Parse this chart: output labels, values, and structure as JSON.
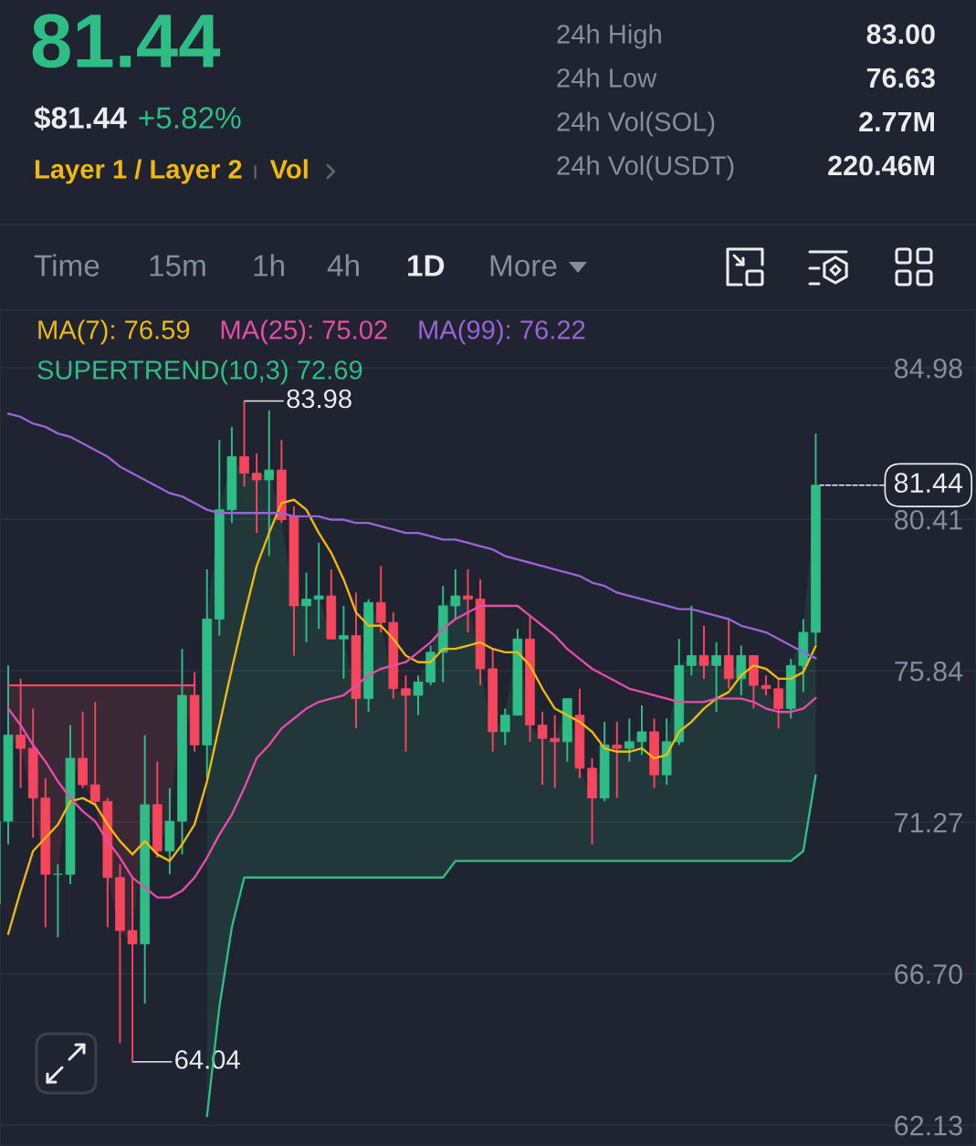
{
  "chart_data": [
    {
      "type": "other",
      "title": "81.44",
      "annotations": [
        "$81.44",
        "+5.82%",
        "Layer 1 / Layer 2",
        "Vol",
        "24h High",
        "83.00",
        "24h Low",
        "76.63",
        "24h Vol(SOL)",
        "2.77M",
        "24h Vol(USDT)",
        "220.46M",
        "Time",
        "15m",
        "1h",
        "4h",
        "1D",
        "More"
      ]
    },
    {
      "type": "candlestick",
      "categories": [
        null,
        null,
        null,
        null,
        null,
        null,
        null,
        null,
        null,
        null,
        null,
        null,
        null,
        null,
        null,
        null,
        null,
        null,
        null,
        null,
        null,
        null,
        null,
        null,
        null,
        null,
        null,
        null,
        null,
        null,
        null,
        null,
        null,
        null,
        null,
        null,
        null,
        null,
        null,
        null,
        null,
        null,
        null,
        null,
        null,
        null,
        null,
        null,
        null,
        null,
        null,
        null,
        null,
        null,
        null,
        null,
        null,
        null,
        null,
        null,
        null,
        null,
        null,
        null,
        null,
        null,
        null
      ],
      "ohlc": [
        [
          68.8,
          71.3,
          68.8,
          71.3
        ],
        [
          71.3,
          76.0,
          70.6,
          73.9
        ],
        [
          73.9,
          75.6,
          72.3,
          73.5
        ],
        [
          73.5,
          74.7,
          70.8,
          72.0
        ],
        [
          72.0,
          72.6,
          68.1,
          69.7
        ],
        [
          69.7,
          70.0,
          67.8,
          69.7
        ],
        [
          69.7,
          74.2,
          69.4,
          73.2
        ],
        [
          73.2,
          74.6,
          72.3,
          72.4
        ],
        [
          72.4,
          74.9,
          71.8,
          71.9
        ],
        [
          71.9,
          72.0,
          68.1,
          69.6
        ],
        [
          69.6,
          70.0,
          64.6,
          68.0
        ],
        [
          68.0,
          69.6,
          64.04,
          67.6
        ],
        [
          67.6,
          73.9,
          65.8,
          71.8
        ],
        [
          71.8,
          73.1,
          70.2,
          70.4
        ],
        [
          70.4,
          72.3,
          69.7,
          71.3
        ],
        [
          71.3,
          76.5,
          70.3,
          75.1
        ],
        [
          75.1,
          75.8,
          73.4,
          73.6
        ],
        [
          73.6,
          78.9,
          72.6,
          77.4
        ],
        [
          77.4,
          82.8,
          76.9,
          80.7
        ],
        [
          80.7,
          83.2,
          80.3,
          82.3
        ],
        [
          82.3,
          83.98,
          81.4,
          81.8
        ],
        [
          81.8,
          82.4,
          80.0,
          81.6
        ],
        [
          81.6,
          83.7,
          79.3,
          81.9
        ],
        [
          81.9,
          82.8,
          80.3,
          80.4
        ],
        [
          80.5,
          80.8,
          76.3,
          77.8
        ],
        [
          77.8,
          78.8,
          76.7,
          78.0
        ],
        [
          78.0,
          79.7,
          77.1,
          78.1
        ],
        [
          78.1,
          78.9,
          76.8,
          76.8
        ],
        [
          76.8,
          77.8,
          75.6,
          76.9
        ],
        [
          76.9,
          78.2,
          74.1,
          75.0
        ],
        [
          75.0,
          78.0,
          74.6,
          77.9
        ],
        [
          77.9,
          79.0,
          77.0,
          77.3
        ],
        [
          77.3,
          77.6,
          75.0,
          75.3
        ],
        [
          75.3,
          75.7,
          73.4,
          75.1
        ],
        [
          75.1,
          75.7,
          74.5,
          75.5
        ],
        [
          75.5,
          76.6,
          75.4,
          76.4
        ],
        [
          76.4,
          78.4,
          75.5,
          77.8
        ],
        [
          77.8,
          78.9,
          77.4,
          78.1
        ],
        [
          78.1,
          78.9,
          77.0,
          78.0
        ],
        [
          78.0,
          78.6,
          75.4,
          75.9
        ],
        [
          75.9,
          76.5,
          73.4,
          74.0
        ],
        [
          74.0,
          74.7,
          73.6,
          74.5
        ],
        [
          74.5,
          77.1,
          74.5,
          76.8
        ],
        [
          76.8,
          77.5,
          73.7,
          74.2
        ],
        [
          74.2,
          74.6,
          72.4,
          73.8
        ],
        [
          73.8,
          74.5,
          72.3,
          73.7
        ],
        [
          73.7,
          75.0,
          73.1,
          75.0
        ],
        [
          74.5,
          75.3,
          72.6,
          72.9
        ],
        [
          72.9,
          73.2,
          70.6,
          72.0
        ],
        [
          72.0,
          74.3,
          71.9,
          73.6
        ],
        [
          73.6,
          74.3,
          72.0,
          73.5
        ],
        [
          73.5,
          74.4,
          73.1,
          73.7
        ],
        [
          73.7,
          74.8,
          73.3,
          74.0
        ],
        [
          74.0,
          74.4,
          72.3,
          72.7
        ],
        [
          72.7,
          74.4,
          72.4,
          73.7
        ],
        [
          73.7,
          76.8,
          73.6,
          76.0
        ],
        [
          76.0,
          77.8,
          75.7,
          76.3
        ],
        [
          76.3,
          77.2,
          75.6,
          76.0
        ],
        [
          76.0,
          76.7,
          74.6,
          76.3
        ],
        [
          76.3,
          77.4,
          75.3,
          75.6
        ],
        [
          75.6,
          76.6,
          75.1,
          76.3
        ],
        [
          76.3,
          76.3,
          74.7,
          75.4
        ],
        [
          75.4,
          75.7,
          75.1,
          75.3
        ],
        [
          75.3,
          75.6,
          74.1,
          74.7
        ],
        [
          74.7,
          76.2,
          74.4,
          76.0
        ],
        [
          76.0,
          77.4,
          75.2,
          77.0
        ],
        [
          77.0,
          83.0,
          76.63,
          81.44
        ]
      ],
      "colors": [
        "#2ebd85",
        "#2ebd85",
        "#f6465d",
        "#f6465d",
        "#f6465d",
        "#2ebd85",
        "#2ebd85",
        "#f6465d",
        "#f6465d",
        "#f6465d",
        "#f6465d",
        "#f6465d",
        "#2ebd85",
        "#f6465d",
        "#2ebd85",
        "#2ebd85",
        "#f6465d",
        "#2ebd85",
        "#2ebd85",
        "#2ebd85",
        "#f6465d",
        "#f6465d",
        "#2ebd85",
        "#f6465d",
        "#f6465d",
        "#2ebd85",
        "#2ebd85",
        "#f6465d",
        "#2ebd85",
        "#f6465d",
        "#2ebd85",
        "#f6465d",
        "#f6465d",
        "#f6465d",
        "#2ebd85",
        "#2ebd85",
        "#2ebd85",
        "#2ebd85",
        "#f6465d",
        "#f6465d",
        "#f6465d",
        "#2ebd85",
        "#2ebd85",
        "#f6465d",
        "#f6465d",
        "#f6465d",
        "#2ebd85",
        "#f6465d",
        "#f6465d",
        "#2ebd85",
        "#f6465d",
        "#2ebd85",
        "#2ebd85",
        "#f6465d",
        "#2ebd85",
        "#2ebd85",
        "#2ebd85",
        "#f6465d",
        "#2ebd85",
        "#f6465d",
        "#2ebd85",
        "#f6465d",
        "#f6465d",
        "#f6465d",
        "#2ebd85",
        "#2ebd85",
        "#2ebd85"
      ],
      "series": [
        {
          "type": "line",
          "name": "MA(7): 76.59",
          "color": "#f0b90b",
          "values": [
            null,
            67.9,
            69.2,
            70.4,
            70.8,
            71.2,
            71.9,
            72.0,
            71.8,
            71.2,
            70.7,
            70.3,
            70.7,
            70.3,
            70.1,
            70.6,
            71.2,
            72.5,
            74.2,
            75.9,
            77.5,
            79.0,
            80.0,
            80.9,
            81.0,
            80.7,
            80.0,
            79.4,
            78.6,
            77.6,
            77.2,
            77.2,
            76.8,
            76.3,
            76.1,
            76.1,
            76.5,
            76.5,
            76.6,
            76.7,
            76.5,
            76.4,
            76.4,
            76.0,
            75.3,
            74.7,
            74.5,
            74.3,
            74.0,
            73.5,
            73.4,
            73.4,
            73.5,
            73.2,
            73.3,
            74.0,
            74.3,
            74.7,
            75.0,
            75.2,
            75.7,
            76.0,
            75.9,
            75.6,
            75.6,
            75.8,
            76.59
          ]
        },
        {
          "type": "line",
          "name": "MA(25): 75.02",
          "color": "#e84ca8",
          "values": [
            null,
            74.7,
            74.2,
            73.6,
            73.1,
            72.5,
            72.0,
            71.6,
            71.3,
            70.7,
            70.2,
            69.6,
            69.3,
            69.0,
            69.0,
            69.2,
            69.6,
            70.2,
            70.9,
            71.5,
            72.3,
            73.2,
            73.6,
            74.1,
            74.4,
            74.7,
            74.9,
            75.0,
            75.1,
            75.4,
            75.7,
            75.9,
            76.0,
            76.1,
            76.4,
            76.7,
            77.1,
            77.4,
            77.6,
            77.8,
            77.8,
            77.8,
            77.8,
            77.5,
            77.2,
            76.9,
            76.5,
            76.2,
            75.9,
            75.7,
            75.5,
            75.3,
            75.2,
            75.1,
            75.0,
            74.9,
            74.9,
            74.9,
            75.0,
            75.0,
            75.0,
            74.9,
            74.7,
            74.6,
            74.6,
            74.7,
            75.02
          ]
        },
        {
          "type": "line",
          "name": "MA(99): 76.22",
          "color": "#9a63d8",
          "values": [
            null,
            83.6,
            83.5,
            83.3,
            83.2,
            83.0,
            82.9,
            82.7,
            82.5,
            82.3,
            82.0,
            81.8,
            81.6,
            81.4,
            81.2,
            81.1,
            80.9,
            80.7,
            80.6,
            80.6,
            80.6,
            80.6,
            80.6,
            80.6,
            80.5,
            80.5,
            80.5,
            80.4,
            80.4,
            80.3,
            80.3,
            80.2,
            80.1,
            80.0,
            80.0,
            79.9,
            79.8,
            79.8,
            79.7,
            79.6,
            79.5,
            79.3,
            79.2,
            79.1,
            79.0,
            78.9,
            78.8,
            78.7,
            78.5,
            78.4,
            78.2,
            78.1,
            78.0,
            77.9,
            77.8,
            77.7,
            77.7,
            77.6,
            77.5,
            77.4,
            77.2,
            77.1,
            77.0,
            76.8,
            76.6,
            76.4,
            76.22
          ]
        },
        {
          "type": "line",
          "name": "SUPERTREND(10,3) 72.69",
          "color": "#2ebd85",
          "values": [
            null,
            null,
            null,
            null,
            null,
            null,
            null,
            null,
            null,
            null,
            null,
            null,
            null,
            null,
            null,
            null,
            null,
            62.4,
            65.7,
            68.1,
            69.6,
            69.6,
            69.6,
            69.6,
            69.6,
            69.6,
            69.6,
            69.6,
            69.6,
            69.6,
            69.6,
            69.6,
            69.6,
            69.6,
            69.6,
            69.6,
            69.6,
            70.1,
            70.1,
            70.1,
            70.1,
            70.1,
            70.1,
            70.1,
            70.1,
            70.1,
            70.1,
            70.1,
            70.1,
            70.1,
            70.1,
            70.1,
            70.1,
            70.1,
            70.1,
            70.1,
            70.1,
            70.1,
            70.1,
            70.1,
            70.1,
            70.1,
            70.1,
            70.1,
            70.1,
            70.4,
            72.69
          ],
          "lower": [
            null,
            null,
            null,
            null,
            null,
            null,
            null,
            null,
            null,
            null,
            null,
            null,
            null,
            null,
            null,
            null,
            null,
            62.4,
            65.7,
            68.1,
            69.6,
            69.6,
            69.6,
            69.6,
            69.6,
            69.6,
            69.6,
            69.6,
            69.6,
            69.6,
            69.6,
            69.6,
            69.6,
            69.6,
            69.6,
            69.6,
            69.6,
            70.1,
            70.1,
            70.1,
            70.1,
            70.1,
            70.1,
            70.1,
            70.1,
            70.1,
            70.1,
            70.1,
            70.1,
            70.1,
            70.1,
            70.1,
            70.1,
            70.1,
            70.1,
            70.1,
            70.1,
            70.1,
            70.1,
            70.1,
            70.1,
            70.1,
            70.1,
            70.1,
            70.1,
            70.4,
            72.69
          ],
          "upper": [
            null,
            null,
            null,
            null,
            null,
            null,
            null,
            null,
            null,
            null,
            null,
            null,
            null,
            null,
            null,
            null,
            null,
            77.4,
            80.7,
            82.3,
            81.8,
            81.6,
            81.9,
            80.4,
            77.8,
            78.0,
            78.1,
            76.8,
            76.9,
            75.0,
            77.9,
            77.3,
            75.3,
            75.1,
            75.5,
            76.4,
            77.8,
            78.1,
            78.0,
            75.9,
            74.0,
            74.5,
            76.8,
            74.2,
            73.8,
            73.7,
            75.0,
            72.9,
            72.0,
            73.6,
            73.5,
            73.7,
            74.0,
            72.7,
            73.7,
            76.0,
            76.3,
            76.0,
            76.3,
            75.6,
            76.3,
            75.4,
            75.3,
            74.7,
            76.0,
            77.0,
            81.44
          ]
        },
        {
          "type": "line",
          "color": "#f6465d",
          "values": [
            null,
            75.4,
            75.4,
            75.4,
            75.4,
            75.4,
            75.4,
            75.4,
            75.4,
            75.4,
            75.4,
            75.4,
            75.4,
            75.4,
            75.4,
            75.4,
            75.4,
            null,
            null,
            null,
            null,
            null,
            null,
            null,
            null,
            null,
            null,
            null,
            null,
            null,
            null,
            null,
            null,
            null,
            null,
            null,
            null,
            null,
            null,
            null,
            null,
            null,
            null,
            null,
            null,
            null,
            null,
            null,
            null,
            null,
            null,
            null,
            null,
            null,
            null,
            null,
            null,
            null,
            null,
            null,
            null,
            null,
            null,
            null,
            null,
            null,
            null
          ],
          "lower": [
            null,
            73.9,
            73.5,
            72.0,
            69.7,
            69.7,
            73.2,
            72.4,
            71.9,
            69.6,
            68.0,
            67.6,
            71.8,
            70.4,
            71.3,
            75.1,
            73.6,
            null,
            null,
            null,
            null,
            null,
            null,
            null,
            null,
            null,
            null,
            null,
            null,
            null,
            null,
            null,
            null,
            null,
            null,
            null,
            null,
            null,
            null,
            null,
            null,
            null,
            null,
            null,
            null,
            null,
            null,
            null,
            null,
            null,
            null,
            null,
            null,
            null,
            null,
            null,
            null,
            null,
            null,
            null,
            null,
            null,
            null,
            null,
            null,
            null,
            null
          ],
          "upper": [
            null,
            75.4,
            75.4,
            75.4,
            75.4,
            75.4,
            75.4,
            75.4,
            75.4,
            75.4,
            75.4,
            75.4,
            75.4,
            75.4,
            75.4,
            75.4,
            75.4,
            null,
            null,
            null,
            null,
            null,
            null,
            null,
            null,
            null,
            null,
            null,
            null,
            null,
            null,
            null,
            null,
            null,
            null,
            null,
            null,
            null,
            null,
            null,
            null,
            null,
            null,
            null,
            null,
            null,
            null,
            null,
            null,
            null,
            null,
            null,
            null,
            null,
            null,
            null,
            null,
            null,
            null,
            null,
            null,
            null,
            null,
            null,
            null,
            null,
            null
          ]
        }
      ],
      "ylim": [
        61.5,
        86.72
      ],
      "yticks": [
        84.98,
        80.41,
        75.84,
        71.27,
        {
          "value": 66.7,
          "label": "66.70"
        },
        62.13
      ],
      "grid": "y",
      "tick_labels": "y",
      "legend": "top left",
      "annotations": [
        "83.98",
        "64.04",
        "81.44"
      ]
    }
  ]
}
